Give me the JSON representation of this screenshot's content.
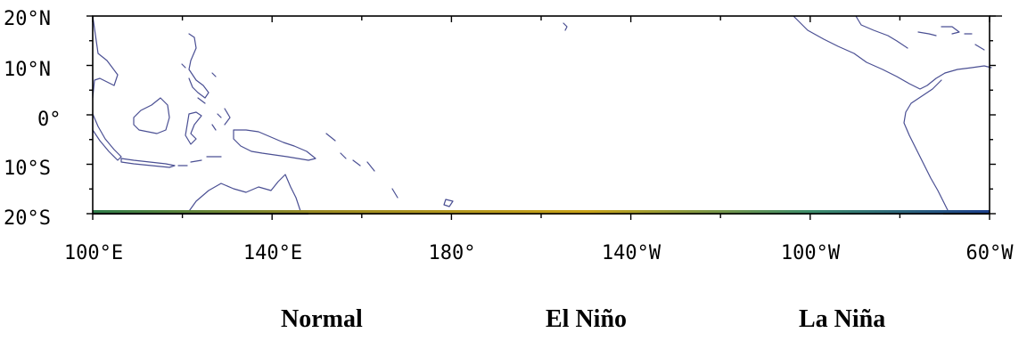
{
  "map": {
    "y_axis_labels": [
      "20°N",
      "10°N",
      "0°",
      "10°S",
      "20°S"
    ],
    "x_axis_labels": [
      "100°E",
      "140°E",
      "180°",
      "140°W",
      "100°W",
      "60°W"
    ],
    "colors": {
      "coastline": "#4a4f93",
      "frame": "#000000",
      "bottom_band": [
        "#2f7d4a",
        "#9a8a22",
        "#c8a217",
        "#3c8d6a",
        "#1c3f8c"
      ]
    }
  },
  "captions": {
    "normal": "Normal",
    "el_nino": "El Niño",
    "la_nina": "La Niña"
  }
}
